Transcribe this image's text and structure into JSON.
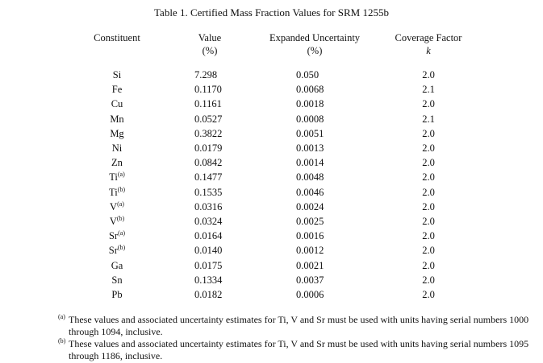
{
  "title": "Table 1.  Certified Mass Fraction Values for SRM 1255b",
  "headers": [
    {
      "line1": "Constituent",
      "line2": ""
    },
    {
      "line1": "Value",
      "line2": "(%)"
    },
    {
      "line1": "Expanded Uncertainty",
      "line2": "(%)"
    },
    {
      "line1": "Coverage Factor",
      "line2": "k"
    }
  ],
  "rows": [
    {
      "el": "Si",
      "sup": "",
      "value": "7.298",
      "unc": "0.050",
      "k": "2.0"
    },
    {
      "el": "Fe",
      "sup": "",
      "value": "0.1170",
      "unc": "0.0068",
      "k": "2.1"
    },
    {
      "el": "Cu",
      "sup": "",
      "value": "0.1161",
      "unc": "0.0018",
      "k": "2.0"
    },
    {
      "el": "Mn",
      "sup": "",
      "value": "0.0527",
      "unc": "0.0008",
      "k": "2.1"
    },
    {
      "el": "Mg",
      "sup": "",
      "value": "0.3822",
      "unc": "0.0051",
      "k": "2.0"
    },
    {
      "el": "Ni",
      "sup": "",
      "value": "0.0179",
      "unc": "0.0013",
      "k": "2.0"
    },
    {
      "el": "Zn",
      "sup": "",
      "value": "0.0842",
      "unc": "0.0014",
      "k": "2.0"
    },
    {
      "el": "Ti",
      "sup": "(a)",
      "value": "0.1477",
      "unc": "0.0048",
      "k": "2.0"
    },
    {
      "el": "Ti",
      "sup": "(b)",
      "value": "0.1535",
      "unc": "0.0046",
      "k": "2.0"
    },
    {
      "el": "V",
      "sup": "(a)",
      "value": "0.0316",
      "unc": "0.0024",
      "k": "2.0"
    },
    {
      "el": "V",
      "sup": "(b)",
      "value": "0.0324",
      "unc": "0.0025",
      "k": "2.0"
    },
    {
      "el": "Sr",
      "sup": "(a)",
      "value": "0.0164",
      "unc": "0.0016",
      "k": "2.0"
    },
    {
      "el": "Sr",
      "sup": "(b)",
      "value": "0.0140",
      "unc": "0.0012",
      "k": "2.0"
    },
    {
      "el": "Ga",
      "sup": "",
      "value": "0.0175",
      "unc": "0.0021",
      "k": "2.0"
    },
    {
      "el": "Sn",
      "sup": "",
      "value": "0.1334",
      "unc": "0.0037",
      "k": "2.0"
    },
    {
      "el": "Pb",
      "sup": "",
      "value": "0.0182",
      "unc": "0.0006",
      "k": "2.0"
    }
  ],
  "footnotes": [
    {
      "mark": "(a)",
      "text": "These values and associated uncertainty estimates for Ti, V and Sr must be used with units having serial numbers 1000 through 1094, inclusive."
    },
    {
      "mark": "(b)",
      "text": "These values and associated uncertainty estimates for Ti, V and Sr must be used with units having serial numbers 1095 through 1186, inclusive."
    }
  ]
}
